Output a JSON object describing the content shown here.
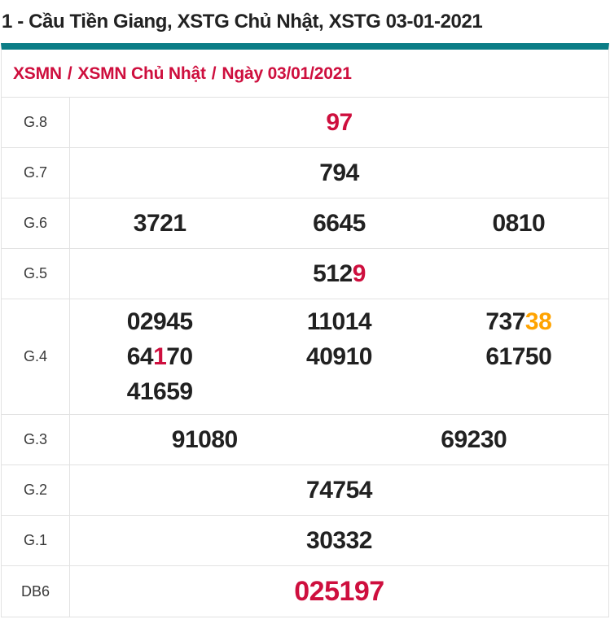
{
  "page_title": "1 - Cầu Tiền Giang, XSTG Chủ Nhật, XSTG 03-01-2021",
  "breadcrumb": {
    "items": [
      "XSMN",
      "XSMN Chủ Nhật",
      "Ngày 03/01/2021"
    ],
    "separator": "/"
  },
  "colors": {
    "accent_teal": "#0b7d86",
    "highlight_red": "#ce0f3e",
    "highlight_orange": "#ffa300",
    "number_dark": "#212121",
    "border_gray": "#e2e2e2"
  },
  "results_table": {
    "rows": [
      {
        "label": "G.8",
        "columns": 1,
        "large": false,
        "values": [
          [
            {
              "text": "97",
              "color": "red"
            }
          ]
        ]
      },
      {
        "label": "G.7",
        "columns": 1,
        "large": false,
        "values": [
          [
            {
              "text": "794",
              "color": "dark"
            }
          ]
        ]
      },
      {
        "label": "G.6",
        "columns": 3,
        "large": false,
        "values": [
          [
            {
              "text": "3721",
              "color": "dark"
            }
          ],
          [
            {
              "text": "6645",
              "color": "dark"
            }
          ],
          [
            {
              "text": "0810",
              "color": "dark"
            }
          ]
        ]
      },
      {
        "label": "G.5",
        "columns": 1,
        "large": false,
        "values": [
          [
            {
              "text": "512",
              "color": "dark"
            },
            {
              "text": "9",
              "color": "red"
            }
          ]
        ]
      },
      {
        "label": "G.4",
        "columns": 3,
        "large": false,
        "values": [
          [
            {
              "text": "02945",
              "color": "dark"
            }
          ],
          [
            {
              "text": "11014",
              "color": "dark"
            }
          ],
          [
            {
              "text": "737",
              "color": "dark"
            },
            {
              "text": "38",
              "color": "orange"
            }
          ],
          [
            {
              "text": "64",
              "color": "dark"
            },
            {
              "text": "1",
              "color": "red"
            },
            {
              "text": "70",
              "color": "dark"
            }
          ],
          [
            {
              "text": "40910",
              "color": "dark"
            }
          ],
          [
            {
              "text": "61750",
              "color": "dark"
            }
          ],
          [
            {
              "text": "41659",
              "color": "dark"
            }
          ]
        ]
      },
      {
        "label": "G.3",
        "columns": 2,
        "large": false,
        "values": [
          [
            {
              "text": "91080",
              "color": "dark"
            }
          ],
          [
            {
              "text": "69230",
              "color": "dark"
            }
          ]
        ]
      },
      {
        "label": "G.2",
        "columns": 1,
        "large": false,
        "values": [
          [
            {
              "text": "74754",
              "color": "dark"
            }
          ]
        ]
      },
      {
        "label": "G.1",
        "columns": 1,
        "large": false,
        "values": [
          [
            {
              "text": "30332",
              "color": "dark"
            }
          ]
        ]
      },
      {
        "label": "DB6",
        "columns": 1,
        "large": true,
        "values": [
          [
            {
              "text": "025197",
              "color": "red"
            }
          ]
        ]
      }
    ]
  }
}
